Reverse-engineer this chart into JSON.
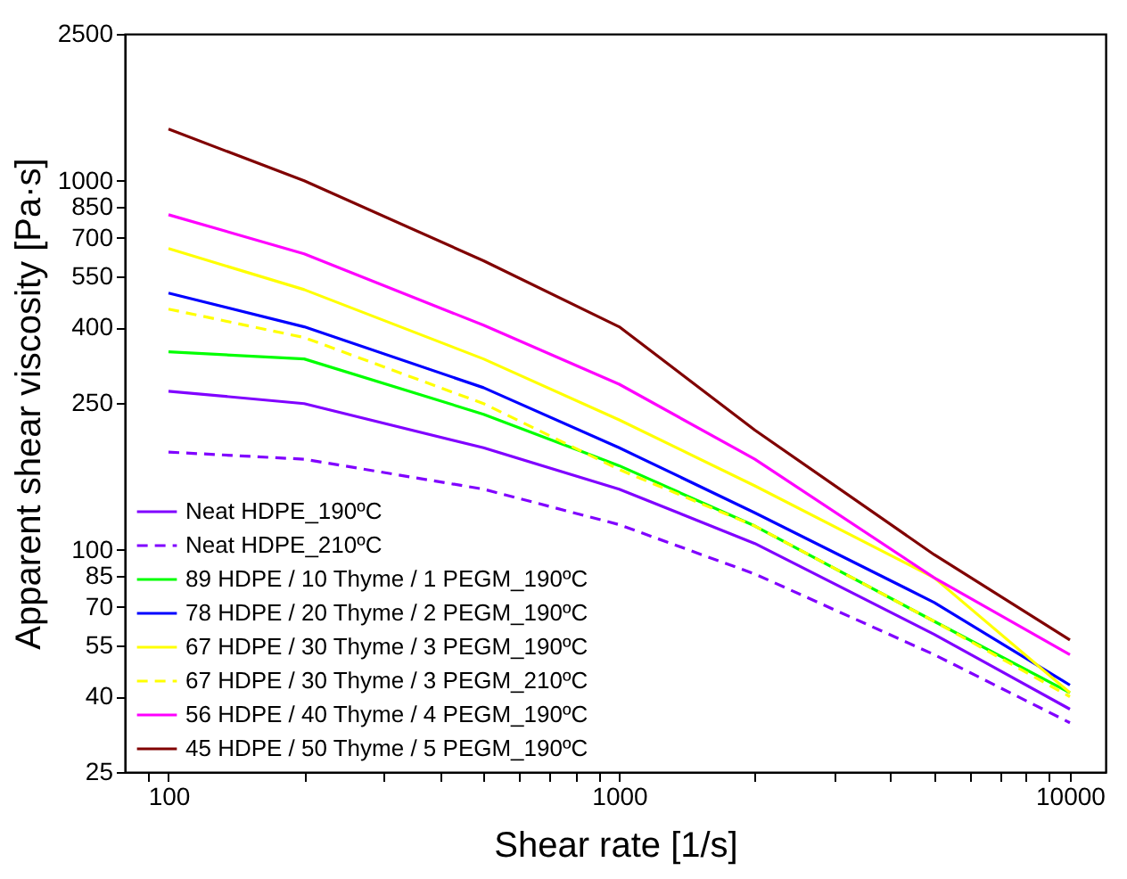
{
  "chart_data": {
    "type": "line",
    "xlabel": "Shear rate [1/s]",
    "ylabel": "Apparent shear viscosity [Pa·s]",
    "log": "xy",
    "grid": false,
    "legend": "bottom left",
    "marker": "none",
    "x": [
      100,
      200,
      500,
      1000,
      2000,
      5000,
      10000
    ],
    "xlim": [
      80,
      12000
    ],
    "xticks": [
      {
        "value": 90,
        "label": null
      },
      100,
      {
        "value": 200,
        "label": null
      },
      {
        "value": 300,
        "label": null
      },
      {
        "value": 400,
        "label": null
      },
      {
        "value": 500,
        "label": null
      },
      {
        "value": 600,
        "label": null
      },
      {
        "value": 700,
        "label": null
      },
      {
        "value": 800,
        "label": null
      },
      {
        "value": 900,
        "label": null
      },
      1000,
      {
        "value": 2000,
        "label": null
      },
      {
        "value": 3000,
        "label": null
      },
      {
        "value": 4000,
        "label": null
      },
      {
        "value": 5000,
        "label": null
      },
      {
        "value": 6000,
        "label": null
      },
      {
        "value": 7000,
        "label": null
      },
      {
        "value": 8000,
        "label": null
      },
      {
        "value": 9000,
        "label": null
      },
      10000
    ],
    "ylim": [
      25,
      2500
    ],
    "yticks": [
      25,
      40,
      55,
      70,
      85,
      100,
      250,
      400,
      550,
      700,
      850,
      1000,
      2500
    ],
    "series": [
      {
        "name": "Neat HDPE_190ºC",
        "color": "#8000ff",
        "line_style": "solid",
        "values": [
          269,
          249,
          189,
          146,
          104,
          59,
          37
        ]
      },
      {
        "name": "Neat HDPE_210ºC",
        "color": "#8000ff",
        "line_style": "dashed",
        "values": [
          184,
          176,
          146,
          117,
          86,
          52,
          34
        ]
      },
      {
        "name": "89 HDPE / 10 Thyme / 1 PEGM_190ºC",
        "color": "#00ff00",
        "line_style": "solid",
        "values": [
          344,
          329,
          233,
          169,
          116,
          64,
          41
        ]
      },
      {
        "name": "78 HDPE / 20 Thyme / 2 PEGM_190ºC",
        "color": "#0000ff",
        "line_style": "solid",
        "values": [
          496,
          402,
          275,
          189,
          126,
          72,
          43
        ]
      },
      {
        "name": "67 HDPE / 30 Thyme / 3 PEGM_190ºC",
        "color": "#ffff00",
        "line_style": "solid",
        "values": [
          655,
          507,
          329,
          225,
          149,
          84,
          41
        ]
      },
      {
        "name": "67 HDPE / 30 Thyme / 3 PEGM_210ºC",
        "color": "#ffff00",
        "line_style": "dashed",
        "values": [
          449,
          376,
          249,
          165,
          116,
          64,
          40
        ]
      },
      {
        "name": "56 HDPE / 40 Thyme / 4 PEGM_190ºC",
        "color": "#ff00ff",
        "line_style": "solid",
        "values": [
          809,
          634,
          406,
          281,
          176,
          84,
          52
        ]
      },
      {
        "name": "45 HDPE / 50 Thyme / 5 PEGM_190ºC",
        "color": "#800000",
        "line_style": "solid",
        "values": [
          1380,
          1000,
          607,
          402,
          211,
          97,
          57
        ]
      }
    ]
  }
}
